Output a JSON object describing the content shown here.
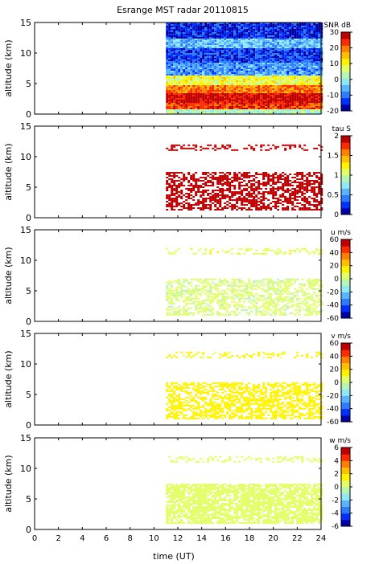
{
  "title": "Esrange MST radar 20110815",
  "xlabel": "time (UT)",
  "chart_data": [
    {
      "type": "heatmap",
      "panel": "snr",
      "ylabel": "altitude (km)",
      "xlim": [
        0,
        24
      ],
      "ylim": [
        0,
        15
      ],
      "xticks": [
        0,
        2,
        4,
        6,
        8,
        10,
        12,
        14,
        16,
        18,
        20,
        22,
        24
      ],
      "yticks": [
        0,
        5,
        10,
        15
      ],
      "data_start_hour": 11,
      "data_end_hour": 24,
      "colorbar": {
        "label": "SNR dB",
        "ticks": [
          30,
          20,
          10,
          0,
          -10,
          -20
        ],
        "range": [
          -20,
          30
        ],
        "scheme": "jet-12"
      },
      "layers": [
        {
          "from_km": 0,
          "to_km": 0.8,
          "level": 0.45
        },
        {
          "from_km": 0.8,
          "to_km": 2.0,
          "level": 0.88
        },
        {
          "from_km": 2.0,
          "to_km": 3.5,
          "level": 0.96
        },
        {
          "from_km": 3.5,
          "to_km": 5.0,
          "level": 0.8
        },
        {
          "from_km": 5.0,
          "to_km": 6.5,
          "level": 0.58
        },
        {
          "from_km": 6.5,
          "to_km": 8.5,
          "level": 0.25
        },
        {
          "from_km": 8.5,
          "to_km": 11.0,
          "level": 0.14
        },
        {
          "from_km": 11.0,
          "to_km": 12.5,
          "level": 0.3
        },
        {
          "from_km": 12.5,
          "to_km": 15.0,
          "level": 0.1
        }
      ]
    },
    {
      "type": "heatmap",
      "panel": "tau",
      "ylabel": "altitude (km)",
      "xlim": [
        0,
        24
      ],
      "ylim": [
        0,
        15
      ],
      "xticks": [
        0,
        2,
        4,
        6,
        8,
        10,
        12,
        14,
        16,
        18,
        20,
        22,
        24
      ],
      "yticks": [
        0,
        5,
        10,
        15
      ],
      "data_start_hour": 11,
      "data_end_hour": 24,
      "colorbar": {
        "label": "tau S",
        "ticks": [
          2,
          1.5,
          1,
          0.5,
          0
        ],
        "range": [
          0,
          2
        ],
        "scheme": "jet-12"
      },
      "layers": [
        {
          "from_km": 1.2,
          "to_km": 7.5,
          "level": 0.99,
          "density": 0.6
        },
        {
          "from_km": 11.2,
          "to_km": 12.0,
          "level": 0.99,
          "density": 0.35
        }
      ]
    },
    {
      "type": "heatmap",
      "panel": "u",
      "ylabel": "altitude (km)",
      "xlim": [
        0,
        24
      ],
      "ylim": [
        0,
        15
      ],
      "xticks": [
        0,
        2,
        4,
        6,
        8,
        10,
        12,
        14,
        16,
        18,
        20,
        22,
        24
      ],
      "yticks": [
        0,
        5,
        10,
        15
      ],
      "data_start_hour": 11,
      "data_end_hour": 24,
      "colorbar": {
        "label": "u m/s",
        "ticks": [
          60,
          40,
          20,
          0,
          -20,
          -40,
          -60
        ],
        "range": [
          -60,
          60
        ],
        "scheme": "jet-12"
      },
      "layers": [
        {
          "from_km": 1.2,
          "to_km": 7.0,
          "level": 0.52,
          "density": 0.55
        },
        {
          "from_km": 11.2,
          "to_km": 12.0,
          "level": 0.56,
          "density": 0.3
        }
      ]
    },
    {
      "type": "heatmap",
      "panel": "v",
      "ylabel": "altitude (km)",
      "xlim": [
        0,
        24
      ],
      "ylim": [
        0,
        15
      ],
      "xticks": [
        0,
        2,
        4,
        6,
        8,
        10,
        12,
        14,
        16,
        18,
        20,
        22,
        24
      ],
      "yticks": [
        0,
        5,
        10,
        15
      ],
      "data_start_hour": 11,
      "data_end_hour": 24,
      "colorbar": {
        "label": "v m/s",
        "ticks": [
          60,
          40,
          20,
          0,
          -20,
          -40,
          -60
        ],
        "range": [
          -60,
          60
        ],
        "scheme": "jet-12"
      },
      "layers": [
        {
          "from_km": 1.2,
          "to_km": 7.0,
          "level": 0.62,
          "density": 0.6
        },
        {
          "from_km": 11.2,
          "to_km": 12.0,
          "level": 0.6,
          "density": 0.3
        }
      ]
    },
    {
      "type": "heatmap",
      "panel": "w",
      "ylabel": "altitude (km)",
      "xlim": [
        0,
        24
      ],
      "ylim": [
        0,
        15
      ],
      "xticks": [
        0,
        2,
        4,
        6,
        8,
        10,
        12,
        14,
        16,
        18,
        20,
        22,
        24
      ],
      "yticks": [
        0,
        5,
        10,
        15
      ],
      "data_start_hour": 11,
      "data_end_hour": 24,
      "colorbar": {
        "label": "w m/s",
        "ticks": [
          6,
          4,
          2,
          0,
          -2,
          -4,
          -6
        ],
        "range": [
          -6,
          6
        ],
        "scheme": "jet-12"
      },
      "layers": [
        {
          "from_km": 1.0,
          "to_km": 7.5,
          "level": 0.54,
          "density": 0.8
        },
        {
          "from_km": 11.2,
          "to_km": 12.0,
          "level": 0.53,
          "density": 0.3
        }
      ]
    }
  ]
}
